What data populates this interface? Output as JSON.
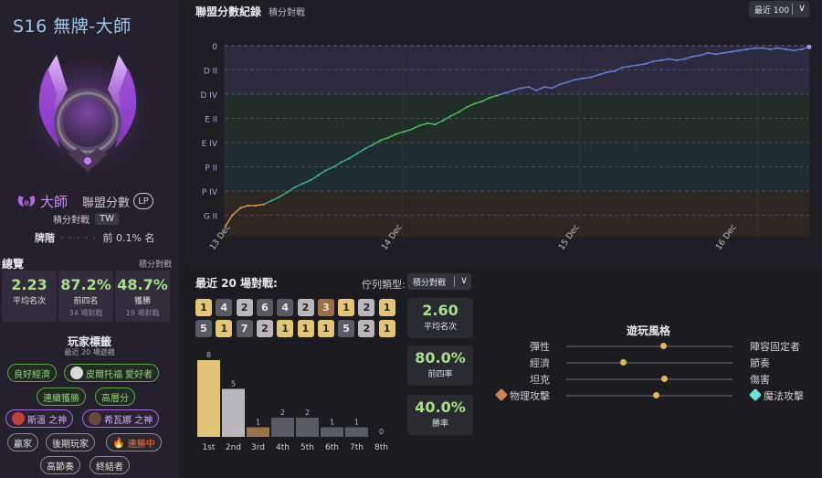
{
  "profile": {
    "season_title": "S16 無牌-大師",
    "rank_name": "大師",
    "lp_label": "聯盟分數",
    "lp_badge": "LP",
    "queue_label": "積分對戰",
    "region": "TW",
    "ladder_label": "牌階",
    "ladder_rank_hidden": "· · · · ·",
    "ladder_percent": "前 0.1% 名"
  },
  "overview": {
    "title": "總覽",
    "queue": "積分對戰",
    "stats": [
      {
        "value": "2.23",
        "label": "平均名次",
        "sub": ""
      },
      {
        "value": "87.2%",
        "label": "前四名",
        "sub": "34 場對戰"
      },
      {
        "value": "48.7%",
        "label": "獲勝",
        "sub": "19 場對戰"
      }
    ]
  },
  "player_tags": {
    "title": "玩家標籤",
    "subtitle": "最近 20 場遊戲",
    "tags": [
      "良好經濟",
      "皮爾托福 愛好者",
      "連續獲勝",
      "高層分",
      "斯溫 之神",
      "希瓦娜 之神",
      "贏家",
      "後期玩家",
      "連勝中",
      "高節奏",
      "終結者"
    ]
  },
  "lp_history": {
    "title": "聯盟分數紀錄",
    "subtitle": "積分對戰",
    "range_select": "最近 100",
    "tier_labels": [
      "0",
      "D II",
      "D IV",
      "E II",
      "E IV",
      "P II",
      "P IV",
      "G II"
    ],
    "date_labels": [
      "13 Dec",
      "14 Dec",
      "15 Dec",
      "16 Dec"
    ],
    "colors": {
      "gold": "#d9a24a",
      "platinum": "#3fae9a",
      "emerald": "#4fbf5a",
      "diamond": "#6a7ed8"
    }
  },
  "chart_data": {
    "type": "line",
    "title": "聯盟分數紀錄",
    "xlabel": "",
    "ylabel": "",
    "x_ticks": [
      "13 Dec",
      "14 Dec",
      "15 Dec",
      "16 Dec"
    ],
    "y_ticks": [
      "0",
      "D II",
      "D IV",
      "E II",
      "E IV",
      "P II",
      "P IV",
      "G II"
    ],
    "series": [
      {
        "values": [
          [
            0,
            7.5
          ],
          [
            1.3,
            7.0
          ],
          [
            2.7,
            6.7
          ],
          [
            4.0,
            6.6
          ],
          [
            5.3,
            6.6
          ],
          [
            6.7,
            6.55
          ],
          [
            8.0,
            6.4
          ],
          [
            9.3,
            6.25
          ],
          [
            10.7,
            6.05
          ],
          [
            12.0,
            5.85
          ],
          [
            13.3,
            5.7
          ],
          [
            14.7,
            5.55
          ],
          [
            16.0,
            5.35
          ],
          [
            17.3,
            5.15
          ],
          [
            18.7,
            5.0
          ],
          [
            20.0,
            4.8
          ],
          [
            21.3,
            4.65
          ],
          [
            22.7,
            4.45
          ],
          [
            24.0,
            4.25
          ],
          [
            25.3,
            4.1
          ],
          [
            26.7,
            3.9
          ],
          [
            28.0,
            3.8
          ],
          [
            29.3,
            3.65
          ],
          [
            30.7,
            3.55
          ],
          [
            32.0,
            3.45
          ],
          [
            33.3,
            3.3
          ],
          [
            34.7,
            3.2
          ],
          [
            36.0,
            3.25
          ],
          [
            37.3,
            3.1
          ],
          [
            38.7,
            2.9
          ],
          [
            40.0,
            2.75
          ],
          [
            41.3,
            2.55
          ],
          [
            42.7,
            2.4
          ],
          [
            44.0,
            2.3
          ],
          [
            45.3,
            2.15
          ],
          [
            46.7,
            2.05
          ],
          [
            48.0,
            1.95
          ],
          [
            49.3,
            1.85
          ],
          [
            50.7,
            1.75
          ],
          [
            52.0,
            1.7
          ],
          [
            53.3,
            1.85
          ],
          [
            54.7,
            1.7
          ],
          [
            56.0,
            1.75
          ],
          [
            57.3,
            1.6
          ],
          [
            58.7,
            1.5
          ],
          [
            60.0,
            1.4
          ],
          [
            61.3,
            1.35
          ],
          [
            62.7,
            1.3
          ],
          [
            64.0,
            1.2
          ],
          [
            65.3,
            1.1
          ],
          [
            66.7,
            1.05
          ],
          [
            68.0,
            0.9
          ],
          [
            69.3,
            0.85
          ],
          [
            70.7,
            0.8
          ],
          [
            72.0,
            0.75
          ],
          [
            73.3,
            0.65
          ],
          [
            74.7,
            0.6
          ],
          [
            76.0,
            0.55
          ],
          [
            77.3,
            0.6
          ],
          [
            78.7,
            0.55
          ],
          [
            80.0,
            0.45
          ],
          [
            81.3,
            0.4
          ],
          [
            82.7,
            0.3
          ],
          [
            84.0,
            0.35
          ],
          [
            85.3,
            0.3
          ],
          [
            86.7,
            0.25
          ],
          [
            88.0,
            0.2
          ],
          [
            89.3,
            0.15
          ],
          [
            90.7,
            0.1
          ],
          [
            92.0,
            0.1
          ],
          [
            93.3,
            0.15
          ],
          [
            94.7,
            0.1
          ],
          [
            96.0,
            0.15
          ],
          [
            97.3,
            0.2
          ],
          [
            98.7,
            0.15
          ],
          [
            100.0,
            0.05
          ]
        ]
      }
    ],
    "grid": true
  },
  "recent_matches": {
    "title": "最近 20 場對戰:",
    "queue_type_label": "佇列類型:",
    "queue_type_value": "積分對戰",
    "placements": [
      1,
      4,
      2,
      6,
      4,
      2,
      3,
      1,
      2,
      1,
      5,
      1,
      7,
      2,
      1,
      1,
      1,
      5,
      2,
      1
    ],
    "placement_histogram": {
      "categories": [
        "1st",
        "2nd",
        "3rd",
        "4th",
        "5th",
        "6th",
        "7th",
        "8th"
      ],
      "values": [
        8,
        5,
        1,
        2,
        2,
        1,
        1,
        0
      ]
    },
    "summary": [
      {
        "value": "2.60",
        "label": "平均名次"
      },
      {
        "value": "80.0%",
        "label": "前四率"
      },
      {
        "value": "40.0%",
        "label": "勝率"
      }
    ],
    "tile_colors": {
      "1": "#e3c57a",
      "2": "#b8b8bc",
      "3": "#9a7148",
      "other": "#5a5a62"
    }
  },
  "playstyle": {
    "title": "遊玩風格",
    "rows": [
      {
        "left": "彈性",
        "right": "陣容固定者",
        "level": 0.58
      },
      {
        "left": "經濟",
        "right": "節奏",
        "level": 0.34
      },
      {
        "left": "坦克",
        "right": "傷害",
        "level": 0.59
      },
      {
        "left": "物理攻擊",
        "right": "魔法攻擊",
        "level": 0.54
      }
    ]
  }
}
